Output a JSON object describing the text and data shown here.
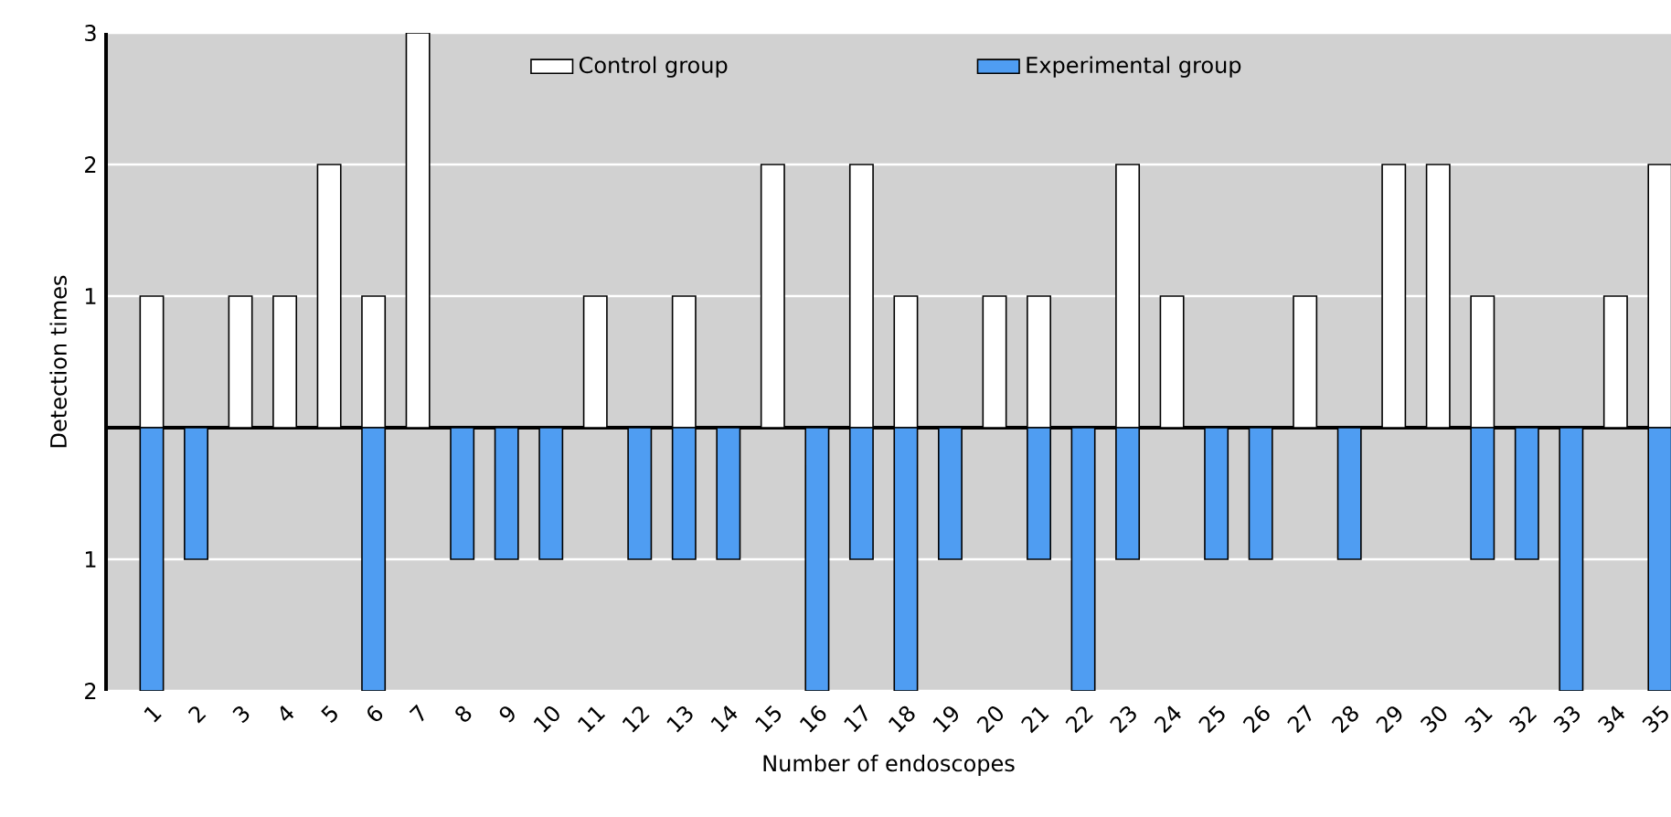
{
  "chart_data": {
    "type": "bar",
    "xlabel": "Number of endoscopes",
    "ylabel": "Detection times",
    "categories": [
      "1",
      "2",
      "3",
      "4",
      "5",
      "6",
      "7",
      "8",
      "9",
      "10",
      "11",
      "12",
      "13",
      "14",
      "15",
      "16",
      "17",
      "18",
      "19",
      "20",
      "21",
      "22",
      "23",
      "24",
      "25",
      "26",
      "27",
      "28",
      "29",
      "30",
      "31",
      "32",
      "33",
      "34",
      "35"
    ],
    "series": [
      {
        "name": "Control group",
        "color": "#ffffff",
        "values": [
          1,
          0,
          1,
          1,
          2,
          1,
          3,
          0,
          0,
          0,
          1,
          0,
          1,
          0,
          2,
          0,
          2,
          1,
          0,
          1,
          1,
          0,
          2,
          1,
          0,
          0,
          1,
          0,
          2,
          2,
          1,
          0,
          0,
          1,
          2
        ]
      },
      {
        "name": "Experimental group",
        "color": "#4f9df2",
        "values": [
          -2,
          -1,
          0,
          0,
          0,
          -2,
          0,
          -1,
          -1,
          -1,
          0,
          -1,
          -1,
          -1,
          0,
          -2,
          -1,
          -2,
          -1,
          0,
          -1,
          -2,
          -1,
          0,
          -1,
          -1,
          0,
          -1,
          0,
          0,
          -1,
          -1,
          -2,
          0,
          -2
        ]
      }
    ],
    "ylim": [
      -2,
      3
    ],
    "yticks": [
      {
        "value": -2,
        "label": "2"
      },
      {
        "value": -1,
        "label": "1"
      },
      {
        "value": 1,
        "label": "1"
      },
      {
        "value": 2,
        "label": "2"
      },
      {
        "value": 3,
        "label": "3"
      }
    ],
    "grid": "y",
    "legend": "top"
  }
}
